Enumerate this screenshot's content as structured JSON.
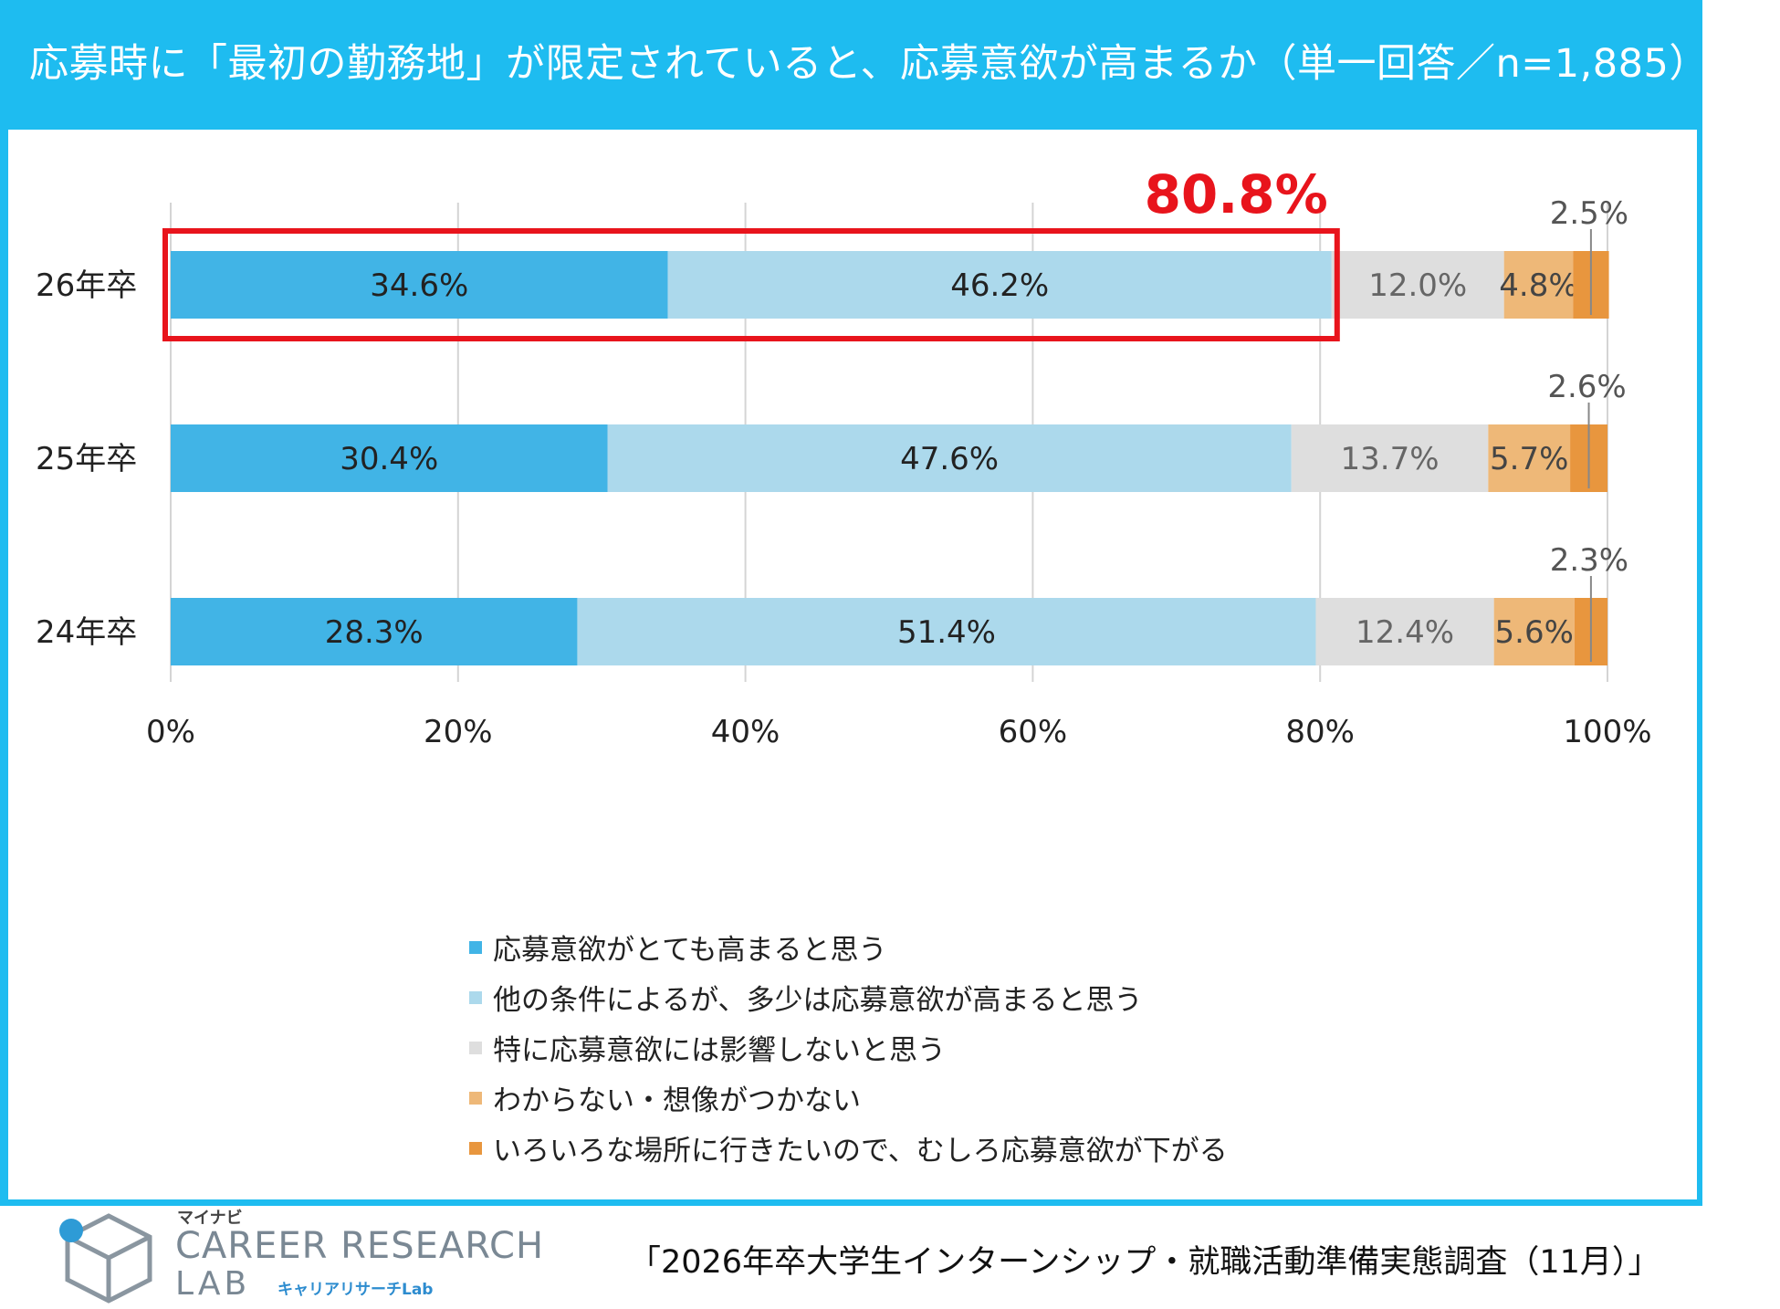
{
  "title": "応募時に「最初の勤務地」が限定されていると、応募意欲が高まるか（単一回答／n=1,885）",
  "highlight_label": "80.8%",
  "source": "「2026年卒大学生インターンシップ・就職活動準備実態調査（11月）」",
  "logo": {
    "brand": "マイナビ",
    "main": "CAREER RESEARCH",
    "lab": "LAB",
    "sub": "キャリアリサーチLab"
  },
  "chart_data": {
    "type": "bar",
    "orientation": "horizontal",
    "stacked": true,
    "title": "応募時に「最初の勤務地」が限定されていると、応募意欲が高まるか（単一回答／n=1,885）",
    "categories": [
      "26年卒",
      "25年卒",
      "24年卒"
    ],
    "xlim": [
      0,
      100
    ],
    "x_ticks": [
      "0%",
      "20%",
      "40%",
      "60%",
      "80%",
      "100%"
    ],
    "grid": true,
    "legend_position": "bottom",
    "series": [
      {
        "name": "応募意欲がとても高まると思う",
        "color": "#41b4e6",
        "values": [
          34.6,
          30.4,
          28.3
        ],
        "labels": [
          "34.6%",
          "30.4%",
          "28.3%"
        ],
        "label_color": "#222222"
      },
      {
        "name": "他の条件によるが、多少は応募意欲が高まると思う",
        "color": "#acd9ec",
        "values": [
          46.2,
          47.6,
          51.4
        ],
        "labels": [
          "46.2%",
          "47.6%",
          "51.4%"
        ],
        "label_color": "#222222"
      },
      {
        "name": "特に応募意欲には影響しないと思う",
        "color": "#dedede",
        "values": [
          12.0,
          13.7,
          12.4
        ],
        "labels": [
          "12.0%",
          "13.7%",
          "12.4%"
        ],
        "label_color": "#666666"
      },
      {
        "name": "わからない・想像がつかない",
        "color": "#eeb878",
        "values": [
          4.8,
          5.7,
          5.6
        ],
        "labels": [
          "4.8%",
          "5.7%",
          "5.6%"
        ],
        "label_color": "#444444"
      },
      {
        "name": "いろいろな場所に行きたいので、むしろ応募意欲が下がる",
        "color": "#e8963e",
        "values": [
          2.5,
          2.6,
          2.3
        ],
        "labels": [
          "2.5%",
          "2.6%",
          "2.3%"
        ],
        "label_color": "#555555"
      }
    ],
    "annotation": {
      "text": "80.8%",
      "category": "26年卒",
      "covers_series": [
        0,
        1
      ],
      "color": "#e8141c"
    }
  }
}
